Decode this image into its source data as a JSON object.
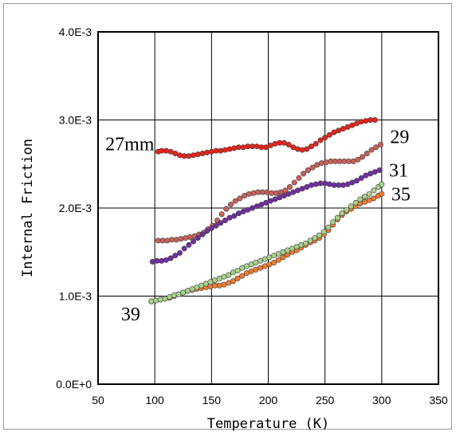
{
  "chart_data": {
    "type": "scatter",
    "title": "",
    "xlabel": "Temperature (K)",
    "ylabel": "Internal Friction",
    "xlim": [
      50,
      350
    ],
    "ylim": [
      0,
      0.004
    ],
    "x_ticks": [
      50,
      100,
      150,
      200,
      250,
      300,
      350
    ],
    "x_tick_labels": [
      "50",
      "100",
      "150",
      "200",
      "250",
      "300",
      "350"
    ],
    "y_ticks": [
      0,
      0.001,
      0.002,
      0.003,
      0.004
    ],
    "y_tick_labels": [
      "0.0E+0",
      "1.0E-3",
      "2.0E-3",
      "3.0E-3",
      "4.0E-3"
    ],
    "grid": true,
    "legend": "none",
    "series": [
      {
        "name": "27mm",
        "color": "#e8231c",
        "points": [
          [
            103,
            0.00264
          ],
          [
            106,
            0.00265
          ],
          [
            110,
            0.00265
          ],
          [
            114,
            0.00264
          ],
          [
            118,
            0.00262
          ],
          [
            122,
            0.0026
          ],
          [
            126,
            0.00259
          ],
          [
            130,
            0.00259
          ],
          [
            134,
            0.0026
          ],
          [
            138,
            0.00261
          ],
          [
            142,
            0.00262
          ],
          [
            146,
            0.00263
          ],
          [
            150,
            0.00264
          ],
          [
            154,
            0.00265
          ],
          [
            158,
            0.00265
          ],
          [
            162,
            0.00266
          ],
          [
            166,
            0.00267
          ],
          [
            170,
            0.00268
          ],
          [
            174,
            0.00269
          ],
          [
            178,
            0.00269
          ],
          [
            182,
            0.0027
          ],
          [
            186,
            0.0027
          ],
          [
            190,
            0.0027
          ],
          [
            194,
            0.00269
          ],
          [
            198,
            0.00269
          ],
          [
            202,
            0.00271
          ],
          [
            206,
            0.00273
          ],
          [
            210,
            0.00274
          ],
          [
            214,
            0.00274
          ],
          [
            218,
            0.00272
          ],
          [
            222,
            0.00269
          ],
          [
            226,
            0.00267
          ],
          [
            230,
            0.00266
          ],
          [
            234,
            0.00267
          ],
          [
            238,
            0.0027
          ],
          [
            242,
            0.00273
          ],
          [
            246,
            0.00277
          ],
          [
            250,
            0.0028
          ],
          [
            254,
            0.00283
          ],
          [
            258,
            0.00286
          ],
          [
            262,
            0.00288
          ],
          [
            266,
            0.0029
          ],
          [
            270,
            0.00292
          ],
          [
            274,
            0.00294
          ],
          [
            278,
            0.00296
          ],
          [
            282,
            0.00298
          ],
          [
            286,
            0.00299
          ],
          [
            290,
            0.003
          ],
          [
            294,
            0.003
          ]
        ]
      },
      {
        "name": "29",
        "color": "#c8625a",
        "points": [
          [
            103,
            0.00163
          ],
          [
            107,
            0.00163
          ],
          [
            111,
            0.00163
          ],
          [
            115,
            0.00164
          ],
          [
            119,
            0.00164
          ],
          [
            123,
            0.00165
          ],
          [
            127,
            0.00166
          ],
          [
            131,
            0.00167
          ],
          [
            135,
            0.00168
          ],
          [
            139,
            0.0017
          ],
          [
            143,
            0.00172
          ],
          [
            147,
            0.00176
          ],
          [
            151,
            0.0018
          ],
          [
            155,
            0.00186
          ],
          [
            159,
            0.00193
          ],
          [
            163,
            0.00199
          ],
          [
            167,
            0.00204
          ],
          [
            171,
            0.00208
          ],
          [
            175,
            0.00211
          ],
          [
            179,
            0.00214
          ],
          [
            183,
            0.00216
          ],
          [
            187,
            0.00217
          ],
          [
            191,
            0.00218
          ],
          [
            195,
            0.00218
          ],
          [
            199,
            0.00218
          ],
          [
            203,
            0.00217
          ],
          [
            207,
            0.00217
          ],
          [
            211,
            0.00218
          ],
          [
            215,
            0.0022
          ],
          [
            219,
            0.00224
          ],
          [
            223,
            0.00229
          ],
          [
            227,
            0.00234
          ],
          [
            231,
            0.00239
          ],
          [
            235,
            0.00243
          ],
          [
            239,
            0.00246
          ],
          [
            243,
            0.00249
          ],
          [
            247,
            0.00251
          ],
          [
            251,
            0.00252
          ],
          [
            255,
            0.00253
          ],
          [
            259,
            0.00253
          ],
          [
            263,
            0.00253
          ],
          [
            267,
            0.00253
          ],
          [
            271,
            0.00253
          ],
          [
            275,
            0.00253
          ],
          [
            279,
            0.00255
          ],
          [
            283,
            0.00258
          ],
          [
            287,
            0.00262
          ],
          [
            291,
            0.00266
          ],
          [
            295,
            0.00269
          ],
          [
            299,
            0.00272
          ]
        ]
      },
      {
        "name": "31",
        "color": "#7030a0",
        "points": [
          [
            98,
            0.00139
          ],
          [
            102,
            0.0014
          ],
          [
            106,
            0.0014
          ],
          [
            110,
            0.00141
          ],
          [
            114,
            0.00143
          ],
          [
            118,
            0.00146
          ],
          [
            122,
            0.00149
          ],
          [
            126,
            0.00154
          ],
          [
            130,
            0.00158
          ],
          [
            134,
            0.00162
          ],
          [
            138,
            0.00166
          ],
          [
            142,
            0.0017
          ],
          [
            146,
            0.00174
          ],
          [
            150,
            0.00177
          ],
          [
            154,
            0.0018
          ],
          [
            158,
            0.00183
          ],
          [
            162,
            0.00186
          ],
          [
            166,
            0.00189
          ],
          [
            170,
            0.00191
          ],
          [
            174,
            0.00194
          ],
          [
            178,
            0.00196
          ],
          [
            182,
            0.00198
          ],
          [
            186,
            0.002
          ],
          [
            190,
            0.00202
          ],
          [
            194,
            0.00204
          ],
          [
            198,
            0.00206
          ],
          [
            202,
            0.00208
          ],
          [
            206,
            0.0021
          ],
          [
            210,
            0.00212
          ],
          [
            214,
            0.00214
          ],
          [
            218,
            0.00216
          ],
          [
            222,
            0.00218
          ],
          [
            226,
            0.0022
          ],
          [
            230,
            0.00222
          ],
          [
            234,
            0.00224
          ],
          [
            238,
            0.00226
          ],
          [
            242,
            0.00227
          ],
          [
            246,
            0.00228
          ],
          [
            250,
            0.00228
          ],
          [
            254,
            0.00227
          ],
          [
            258,
            0.00226
          ],
          [
            262,
            0.00226
          ],
          [
            266,
            0.00226
          ],
          [
            270,
            0.00227
          ],
          [
            274,
            0.00229
          ],
          [
            278,
            0.00231
          ],
          [
            282,
            0.00234
          ],
          [
            286,
            0.00237
          ],
          [
            290,
            0.00239
          ],
          [
            294,
            0.00241
          ],
          [
            298,
            0.00243
          ]
        ]
      },
      {
        "name": "35",
        "color": "#ed7d31",
        "points": [
          [
            97,
            0.00094
          ],
          [
            101,
            0.00095
          ],
          [
            105,
            0.00096
          ],
          [
            109,
            0.00097
          ],
          [
            113,
            0.00098
          ],
          [
            117,
            0.001
          ],
          [
            121,
            0.00102
          ],
          [
            125,
            0.00104
          ],
          [
            129,
            0.00106
          ],
          [
            133,
            0.00107
          ],
          [
            137,
            0.00108
          ],
          [
            141,
            0.00109
          ],
          [
            145,
            0.0011
          ],
          [
            149,
            0.00111
          ],
          [
            153,
            0.00112
          ],
          [
            157,
            0.00112
          ],
          [
            161,
            0.00113
          ],
          [
            165,
            0.00115
          ],
          [
            169,
            0.00117
          ],
          [
            173,
            0.0012
          ],
          [
            177,
            0.00123
          ],
          [
            181,
            0.00126
          ],
          [
            185,
            0.00128
          ],
          [
            189,
            0.0013
          ],
          [
            193,
            0.00132
          ],
          [
            197,
            0.00134
          ],
          [
            201,
            0.00136
          ],
          [
            205,
            0.00138
          ],
          [
            209,
            0.00141
          ],
          [
            213,
            0.00144
          ],
          [
            217,
            0.00147
          ],
          [
            221,
            0.0015
          ],
          [
            225,
            0.00152
          ],
          [
            229,
            0.00155
          ],
          [
            233,
            0.00158
          ],
          [
            237,
            0.00161
          ],
          [
            241,
            0.00163
          ],
          [
            245,
            0.00166
          ],
          [
            249,
            0.0017
          ],
          [
            253,
            0.00175
          ],
          [
            257,
            0.00181
          ],
          [
            261,
            0.00187
          ],
          [
            265,
            0.00192
          ],
          [
            269,
            0.00196
          ],
          [
            273,
            0.00199
          ],
          [
            277,
            0.00202
          ],
          [
            281,
            0.00205
          ],
          [
            285,
            0.00207
          ],
          [
            289,
            0.00209
          ],
          [
            293,
            0.00211
          ],
          [
            297,
            0.00214
          ],
          [
            300,
            0.00216
          ]
        ]
      },
      {
        "name": "39",
        "color": "#a9d18e",
        "points": [
          [
            97,
            0.00094
          ],
          [
            101,
            0.00095
          ],
          [
            105,
            0.00096
          ],
          [
            109,
            0.00097
          ],
          [
            113,
            0.00099
          ],
          [
            117,
            0.00101
          ],
          [
            121,
            0.00102
          ],
          [
            125,
            0.00104
          ],
          [
            129,
            0.00106
          ],
          [
            133,
            0.00108
          ],
          [
            137,
            0.0011
          ],
          [
            141,
            0.00112
          ],
          [
            145,
            0.00114
          ],
          [
            149,
            0.00116
          ],
          [
            153,
            0.00118
          ],
          [
            157,
            0.0012
          ],
          [
            161,
            0.00122
          ],
          [
            165,
            0.00124
          ],
          [
            169,
            0.00127
          ],
          [
            173,
            0.00129
          ],
          [
            177,
            0.00132
          ],
          [
            181,
            0.00134
          ],
          [
            185,
            0.00136
          ],
          [
            189,
            0.00138
          ],
          [
            193,
            0.0014
          ],
          [
            197,
            0.00142
          ],
          [
            201,
            0.00144
          ],
          [
            205,
            0.00146
          ],
          [
            209,
            0.00148
          ],
          [
            213,
            0.0015
          ],
          [
            217,
            0.00152
          ],
          [
            221,
            0.00154
          ],
          [
            225,
            0.00156
          ],
          [
            229,
            0.00158
          ],
          [
            233,
            0.0016
          ],
          [
            237,
            0.00163
          ],
          [
            241,
            0.00166
          ],
          [
            245,
            0.00169
          ],
          [
            249,
            0.00173
          ],
          [
            253,
            0.00178
          ],
          [
            257,
            0.00184
          ],
          [
            261,
            0.00189
          ],
          [
            265,
            0.00194
          ],
          [
            269,
            0.00198
          ],
          [
            273,
            0.00202
          ],
          [
            277,
            0.00206
          ],
          [
            281,
            0.0021
          ],
          [
            285,
            0.00213
          ],
          [
            289,
            0.00216
          ],
          [
            293,
            0.0022
          ],
          [
            297,
            0.00224
          ],
          [
            300,
            0.00227
          ]
        ]
      }
    ],
    "series_labels": [
      {
        "text": "27mm",
        "series": "27mm"
      },
      {
        "text": "29",
        "series": "29"
      },
      {
        "text": "31",
        "series": "31"
      },
      {
        "text": "35",
        "series": "35"
      },
      {
        "text": "39",
        "series": "39"
      }
    ]
  }
}
